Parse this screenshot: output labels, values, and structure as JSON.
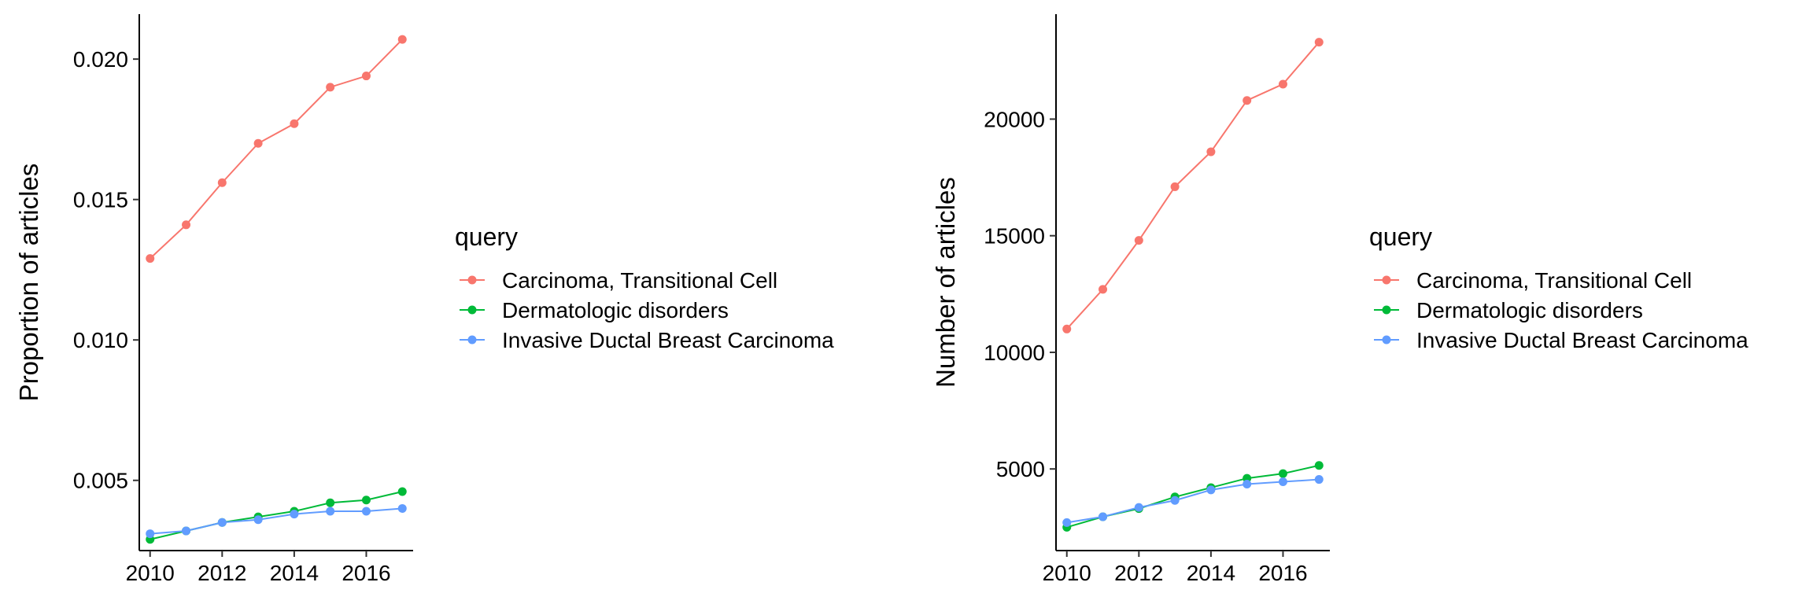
{
  "chart_data": [
    {
      "type": "line",
      "title": "",
      "xlabel": "",
      "ylabel": "Proportion of articles",
      "x": [
        2010,
        2011,
        2012,
        2013,
        2014,
        2015,
        2016,
        2017
      ],
      "xlim": [
        2009.7,
        2017.3
      ],
      "xticks": [
        2010,
        2012,
        2014,
        2016
      ],
      "xtick_labels": [
        "2010",
        "2012",
        "2014",
        "2016"
      ],
      "ylim": [
        0.0025,
        0.0216
      ],
      "yticks": [
        0.005,
        0.01,
        0.015,
        0.02
      ],
      "ytick_labels": [
        "0.005",
        "0.010",
        "0.015",
        "0.020"
      ],
      "grid": false,
      "legend": {
        "title": "query",
        "position": "right",
        "entries": [
          "Carcinoma, Transitional Cell",
          "Dermatologic disorders",
          "Invasive Ductal Breast Carcinoma"
        ]
      },
      "series": [
        {
          "name": "Carcinoma, Transitional Cell",
          "color": "#F8766D",
          "values": [
            0.0129,
            0.0141,
            0.0156,
            0.017,
            0.0177,
            0.019,
            0.0194,
            0.0207
          ]
        },
        {
          "name": "Dermatologic disorders",
          "color": "#00BA38",
          "values": [
            0.0029,
            0.0032,
            0.0035,
            0.0037,
            0.0039,
            0.0042,
            0.0043,
            0.0046
          ]
        },
        {
          "name": "Invasive Ductal Breast Carcinoma",
          "color": "#619CFF",
          "values": [
            0.0031,
            0.0032,
            0.0035,
            0.0036,
            0.0038,
            0.0039,
            0.0039,
            0.004
          ]
        }
      ]
    },
    {
      "type": "line",
      "title": "",
      "xlabel": "",
      "ylabel": "Number of articles",
      "x": [
        2010,
        2011,
        2012,
        2013,
        2014,
        2015,
        2016,
        2017
      ],
      "xlim": [
        2009.7,
        2017.3
      ],
      "xticks": [
        2010,
        2012,
        2014,
        2016
      ],
      "xtick_labels": [
        "2010",
        "2012",
        "2014",
        "2016"
      ],
      "ylim": [
        1500,
        24500
      ],
      "yticks": [
        5000,
        10000,
        15000,
        20000
      ],
      "ytick_labels": [
        "5000",
        "10000",
        "15000",
        "20000"
      ],
      "grid": false,
      "legend": {
        "title": "query",
        "position": "right",
        "entries": [
          "Carcinoma, Transitional Cell",
          "Dermatologic disorders",
          "Invasive Ductal Breast Carcinoma"
        ]
      },
      "series": [
        {
          "name": "Carcinoma, Transitional Cell",
          "color": "#F8766D",
          "values": [
            11000,
            12700,
            14800,
            17100,
            18600,
            20800,
            21500,
            23300
          ]
        },
        {
          "name": "Dermatologic disorders",
          "color": "#00BA38",
          "values": [
            2500,
            2950,
            3300,
            3800,
            4200,
            4600,
            4800,
            5150
          ]
        },
        {
          "name": "Invasive Ductal Breast Carcinoma",
          "color": "#619CFF",
          "values": [
            2700,
            2950,
            3350,
            3650,
            4100,
            4350,
            4450,
            4550
          ]
        }
      ]
    }
  ]
}
